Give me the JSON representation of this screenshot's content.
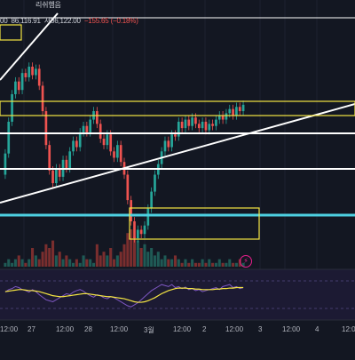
{
  "ohlc": {
    "open_fragment": "00",
    "high": "86,116.91",
    "low_prefix": "저",
    "close": "86,122.00",
    "change": "−155.65 (−0.18%)",
    "top_text": "리쉬햄음"
  },
  "colors": {
    "background": "#131722",
    "up": "#26a69a",
    "down": "#ef5350",
    "yellow": "#f5e642",
    "cyan": "#4dd0e1",
    "white": "#ffffff",
    "rsi_panel": "#1c1a33",
    "rsi_line": "#7e57c2",
    "rsi_ma": "#f5e642"
  },
  "x_axis": {
    "labels": [
      "12:00",
      "27",
      "12:00",
      "28",
      "12:00",
      "3월",
      "12:00",
      "2",
      "12:00",
      "3",
      "12:00",
      "4",
      "12:00"
    ]
  },
  "chart_data": [
    {
      "type": "candlestick",
      "title": "",
      "candles": [
        {
          "o": 30,
          "c": 40
        },
        {
          "o": 40,
          "c": 55
        },
        {
          "o": 55,
          "c": 68
        },
        {
          "o": 68,
          "c": 74
        },
        {
          "o": 74,
          "c": 70
        },
        {
          "o": 70,
          "c": 78
        },
        {
          "o": 78,
          "c": 76
        },
        {
          "o": 76,
          "c": 81
        },
        {
          "o": 81,
          "c": 77
        },
        {
          "o": 77,
          "c": 80
        },
        {
          "o": 80,
          "c": 72
        },
        {
          "o": 72,
          "c": 60
        },
        {
          "o": 60,
          "c": 44
        },
        {
          "o": 44,
          "c": 32
        },
        {
          "o": 32,
          "c": 26
        },
        {
          "o": 26,
          "c": 33
        },
        {
          "o": 33,
          "c": 29
        },
        {
          "o": 29,
          "c": 37
        },
        {
          "o": 37,
          "c": 33
        },
        {
          "o": 33,
          "c": 41
        },
        {
          "o": 41,
          "c": 46
        },
        {
          "o": 46,
          "c": 43
        },
        {
          "o": 43,
          "c": 50
        },
        {
          "o": 50,
          "c": 53
        },
        {
          "o": 53,
          "c": 50
        },
        {
          "o": 50,
          "c": 56
        },
        {
          "o": 56,
          "c": 60
        },
        {
          "o": 60,
          "c": 54
        },
        {
          "o": 54,
          "c": 47
        },
        {
          "o": 47,
          "c": 44
        },
        {
          "o": 44,
          "c": 49
        },
        {
          "o": 49,
          "c": 41
        },
        {
          "o": 41,
          "c": 38
        },
        {
          "o": 38,
          "c": 44
        },
        {
          "o": 44,
          "c": 36
        },
        {
          "o": 36,
          "c": 30
        },
        {
          "o": 30,
          "c": 18
        },
        {
          "o": 18,
          "c": 8
        },
        {
          "o": 8,
          "c": 0
        },
        {
          "o": 0,
          "c": 4
        },
        {
          "o": 4,
          "c": 2
        },
        {
          "o": 2,
          "c": 6
        },
        {
          "o": 6,
          "c": 14
        },
        {
          "o": 14,
          "c": 22
        },
        {
          "o": 22,
          "c": 30
        },
        {
          "o": 30,
          "c": 35
        },
        {
          "o": 35,
          "c": 41
        },
        {
          "o": 41,
          "c": 46
        },
        {
          "o": 46,
          "c": 43
        },
        {
          "o": 43,
          "c": 49
        },
        {
          "o": 49,
          "c": 48
        },
        {
          "o": 48,
          "c": 55
        },
        {
          "o": 55,
          "c": 52
        },
        {
          "o": 52,
          "c": 56
        },
        {
          "o": 56,
          "c": 53
        },
        {
          "o": 53,
          "c": 57
        },
        {
          "o": 57,
          "c": 54
        },
        {
          "o": 54,
          "c": 52
        },
        {
          "o": 52,
          "c": 55
        },
        {
          "o": 55,
          "c": 51
        },
        {
          "o": 51,
          "c": 54
        },
        {
          "o": 54,
          "c": 53
        },
        {
          "o": 53,
          "c": 56
        },
        {
          "o": 56,
          "c": 58
        },
        {
          "o": 58,
          "c": 56
        },
        {
          "o": 56,
          "c": 59
        },
        {
          "o": 59,
          "c": 61
        },
        {
          "o": 61,
          "c": 58
        },
        {
          "o": 58,
          "c": 62
        },
        {
          "o": 62,
          "c": 60
        },
        {
          "o": 60,
          "c": 63
        }
      ],
      "volumes": [
        1,
        2,
        1,
        2,
        3,
        2,
        1,
        2,
        5,
        3,
        2,
        4,
        6,
        5,
        7,
        3,
        4,
        2,
        3,
        2,
        1,
        2,
        1,
        3,
        2,
        2,
        1,
        6,
        3,
        4,
        3,
        5,
        2,
        3,
        4,
        6,
        9,
        10,
        8,
        7,
        5,
        6,
        4,
        5,
        3,
        4,
        2,
        3,
        2,
        2,
        3,
        2,
        1,
        2,
        1,
        2,
        1,
        1,
        2,
        1,
        2,
        1,
        1,
        2,
        1,
        1,
        2,
        1,
        1,
        2,
        1
      ]
    },
    {
      "type": "line",
      "title": "",
      "series": [
        {
          "values": [
            55,
            60,
            62,
            66,
            64,
            60,
            58,
            55,
            60,
            56,
            50,
            45,
            40,
            38,
            36,
            40,
            44,
            48,
            52,
            50,
            55,
            58,
            60,
            57,
            52,
            48,
            45,
            50,
            48,
            44,
            42,
            46,
            44,
            40,
            36,
            32,
            28,
            26,
            30,
            34,
            40,
            46,
            52,
            58,
            62,
            66,
            70,
            68,
            66,
            70,
            64,
            66,
            62,
            65,
            60,
            62,
            58,
            60,
            56,
            58,
            60,
            62,
            64,
            60,
            66,
            68,
            70,
            64,
            66,
            62,
            64
          ]
        },
        {
          "values": [
            56,
            57,
            58,
            59,
            60,
            60,
            59,
            58,
            58,
            57,
            56,
            54,
            52,
            50,
            48,
            47,
            46,
            46,
            47,
            48,
            49,
            50,
            51,
            52,
            52,
            51,
            50,
            49,
            48,
            47,
            46,
            46,
            45,
            44,
            43,
            42,
            40,
            38,
            36,
            35,
            35,
            36,
            38,
            41,
            44,
            48,
            52,
            55,
            58,
            60,
            62,
            63,
            63,
            63,
            62,
            62,
            61,
            61,
            60,
            60,
            60,
            60,
            61,
            61,
            62,
            62,
            63,
            63,
            64,
            64,
            64
          ]
        }
      ]
    }
  ]
}
